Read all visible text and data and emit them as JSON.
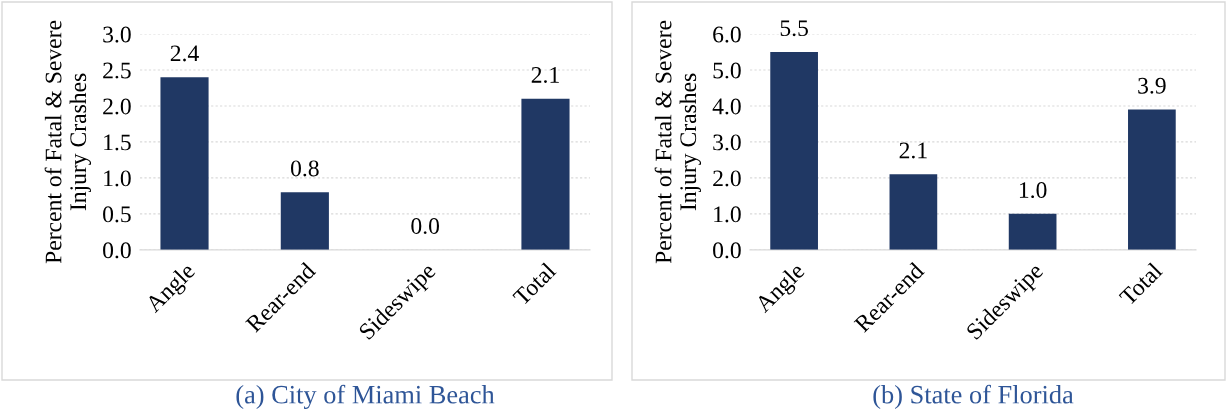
{
  "chart_data": [
    {
      "type": "bar",
      "title": "(a) City of Miami Beach",
      "ylabel": "Percent of Fatal & Severe\nInjury Crashes",
      "categories": [
        "Angle",
        "Rear-end",
        "Sideswipe",
        "Total"
      ],
      "values": [
        2.4,
        0.8,
        0.0,
        2.1
      ],
      "value_labels": [
        "2.4",
        "0.8",
        "0.0",
        "2.1"
      ],
      "color": "#203864",
      "ylim": [
        0,
        3.0
      ],
      "yticks": [
        {
          "value": 0,
          "label": "0.0"
        },
        {
          "value": 0.5,
          "label": "0.5"
        },
        {
          "value": 1.0,
          "label": "1.0"
        },
        {
          "value": 1.5,
          "label": "1.5"
        },
        {
          "value": 2.0,
          "label": "2.0"
        },
        {
          "value": 2.5,
          "label": "2.5"
        },
        {
          "value": 3.0,
          "label": "3.0"
        }
      ],
      "grid": "y"
    },
    {
      "type": "bar",
      "title": "(b) State of Florida",
      "ylabel": "Percent of Fatal & Severe\nInjury Crashes",
      "categories": [
        "Angle",
        "Rear-end",
        "Sideswipe",
        "Total"
      ],
      "values": [
        5.5,
        2.1,
        1.0,
        3.9
      ],
      "value_labels": [
        "5.5",
        "2.1",
        "1.0",
        "3.9"
      ],
      "color": "#203864",
      "ylim": [
        0,
        6.0
      ],
      "yticks": [
        {
          "value": 0,
          "label": "0.0"
        },
        {
          "value": 1.0,
          "label": "1.0"
        },
        {
          "value": 2.0,
          "label": "2.0"
        },
        {
          "value": 3.0,
          "label": "3.0"
        },
        {
          "value": 4.0,
          "label": "4.0"
        },
        {
          "value": 5.0,
          "label": "5.0"
        },
        {
          "value": 6.0,
          "label": "6.0"
        }
      ],
      "grid": "y"
    }
  ]
}
